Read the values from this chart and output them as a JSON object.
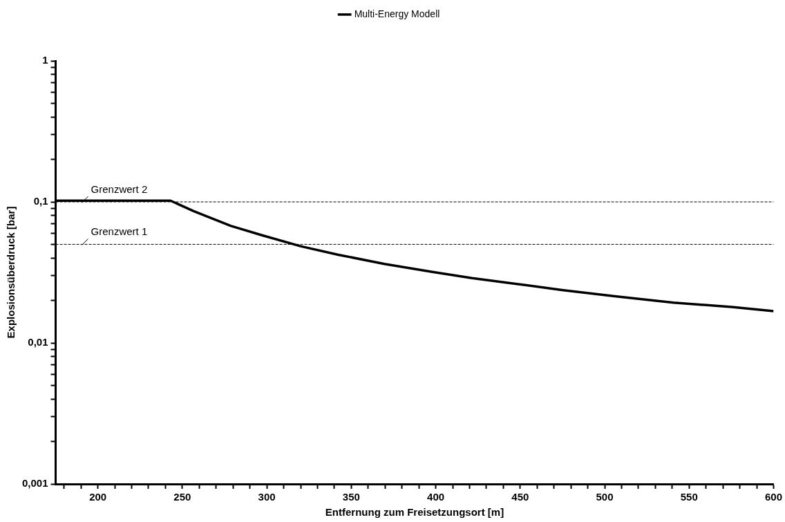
{
  "chart_data": {
    "type": "line",
    "xlabel": "Entfernung zum Freisetzungsort [m]",
    "ylabel": "Explosionsüberdruck [bar]",
    "x": [
      175,
      243,
      256.7,
      278.6,
      296.8,
      320,
      342.3,
      369.6,
      397.3,
      421.5,
      448,
      474.7,
      506.1,
      540.8,
      575.2,
      600
    ],
    "series": [
      {
        "name": "Multi-Energy Modell",
        "color": "#000000",
        "values": [
          0.102,
          0.102,
          0.086,
          0.0676,
          0.0582,
          0.0485,
          0.0422,
          0.0363,
          0.032,
          0.0288,
          0.0262,
          0.0237,
          0.0214,
          0.0193,
          0.018,
          0.0168
        ]
      }
    ],
    "log": "y",
    "xlim": [
      175,
      600
    ],
    "xticks": [
      {
        "value": 180,
        "label": null
      },
      {
        "value": 190,
        "label": null
      },
      200,
      {
        "value": 210,
        "label": null
      },
      {
        "value": 220,
        "label": null
      },
      {
        "value": 230,
        "label": null
      },
      {
        "value": 240,
        "label": null
      },
      250,
      {
        "value": 260,
        "label": null
      },
      {
        "value": 270,
        "label": null
      },
      {
        "value": 280,
        "label": null
      },
      {
        "value": 290,
        "label": null
      },
      300,
      {
        "value": 310,
        "label": null
      },
      {
        "value": 320,
        "label": null
      },
      {
        "value": 330,
        "label": null
      },
      {
        "value": 340,
        "label": null
      },
      350,
      {
        "value": 360,
        "label": null
      },
      {
        "value": 370,
        "label": null
      },
      {
        "value": 380,
        "label": null
      },
      {
        "value": 390,
        "label": null
      },
      400,
      {
        "value": 410,
        "label": null
      },
      {
        "value": 420,
        "label": null
      },
      {
        "value": 430,
        "label": null
      },
      {
        "value": 440,
        "label": null
      },
      450,
      {
        "value": 460,
        "label": null
      },
      {
        "value": 470,
        "label": null
      },
      {
        "value": 480,
        "label": null
      },
      {
        "value": 490,
        "label": null
      },
      500,
      {
        "value": 510,
        "label": null
      },
      {
        "value": 520,
        "label": null
      },
      {
        "value": 530,
        "label": null
      },
      {
        "value": 540,
        "label": null
      },
      550,
      {
        "value": 560,
        "label": null
      },
      {
        "value": 570,
        "label": null
      },
      {
        "value": 580,
        "label": null
      },
      {
        "value": 590,
        "label": null
      },
      600
    ],
    "ylim": [
      0.001,
      1
    ],
    "yticks": [
      {
        "value": 0.001,
        "label": "0,001"
      },
      {
        "value": 0.002,
        "label": null
      },
      {
        "value": 0.003,
        "label": null
      },
      {
        "value": 0.004,
        "label": null
      },
      {
        "value": 0.005,
        "label": null
      },
      {
        "value": 0.006,
        "label": null
      },
      {
        "value": 0.007,
        "label": null
      },
      {
        "value": 0.008,
        "label": null
      },
      {
        "value": 0.009,
        "label": null
      },
      {
        "value": 0.01,
        "label": "0,01"
      },
      {
        "value": 0.02,
        "label": null
      },
      {
        "value": 0.03,
        "label": null
      },
      {
        "value": 0.04,
        "label": null
      },
      {
        "value": 0.05,
        "label": null
      },
      {
        "value": 0.06,
        "label": null
      },
      {
        "value": 0.07,
        "label": null
      },
      {
        "value": 0.08,
        "label": null
      },
      {
        "value": 0.09,
        "label": null
      },
      {
        "value": 0.1,
        "label": "0,1"
      },
      {
        "value": 0.2,
        "label": null
      },
      {
        "value": 0.3,
        "label": null
      },
      {
        "value": 0.4,
        "label": null
      },
      {
        "value": 0.5,
        "label": null
      },
      {
        "value": 0.6,
        "label": null
      },
      {
        "value": 0.7,
        "label": null
      },
      {
        "value": 0.8,
        "label": null
      },
      {
        "value": 0.9,
        "label": null
      },
      1
    ],
    "ref_lines": [
      {
        "axis": "y",
        "value": 0.1,
        "label": "Grenzwert 2",
        "color": "#000000",
        "line_style": "dashed"
      },
      {
        "axis": "y",
        "value": 0.05,
        "label": "Grenzwert 1",
        "color": "#000000",
        "line_style": "dashed"
      }
    ],
    "grid": false,
    "legend": "top",
    "marker": "none",
    "line_style": "solid"
  }
}
